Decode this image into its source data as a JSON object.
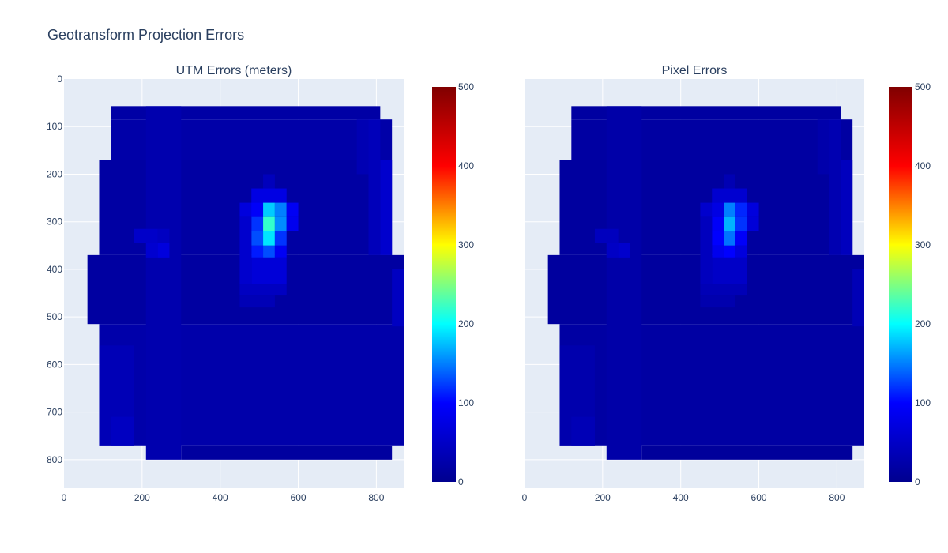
{
  "figure": {
    "title": "Geotransform Projection Errors"
  },
  "colors": {
    "plot_bg": "#e5ecf6",
    "grid": "#ffffff",
    "text": "#2a3f5f",
    "colorscale": [
      "#00008f",
      "#0000ff",
      "#00ffff",
      "#ffff00",
      "#ff0000",
      "#800000"
    ]
  },
  "chart_data": [
    {
      "type": "heatmap",
      "title": "UTM Errors (meters)",
      "xlabel": "",
      "ylabel": "",
      "xlim": [
        0,
        870
      ],
      "ylim": [
        860,
        0
      ],
      "x_ticks": [
        "0",
        "200",
        "400",
        "600",
        "800"
      ],
      "y_ticks": [
        "0",
        "100",
        "200",
        "300",
        "400",
        "500",
        "600",
        "700",
        "800"
      ],
      "colorbar": {
        "min": 0,
        "max": 500,
        "ticks": [
          "0",
          "100",
          "200",
          "300",
          "400",
          "500"
        ]
      },
      "cell_width": 30,
      "cell_height": 28,
      "cells": [
        {
          "x0": 120,
          "x1": 810,
          "y0": 57,
          "y1": 85,
          "value": 20
        },
        {
          "x0": 120,
          "x1": 840,
          "y0": 85,
          "y1": 170,
          "value": 22
        },
        {
          "x0": 90,
          "x1": 840,
          "y0": 170,
          "y1": 370,
          "value": 18
        },
        {
          "x0": 60,
          "x1": 870,
          "y0": 370,
          "y1": 515,
          "value": 16
        },
        {
          "x0": 90,
          "x1": 870,
          "y0": 515,
          "y1": 770,
          "value": 24
        },
        {
          "x0": 300,
          "x1": 840,
          "y0": 770,
          "y1": 800,
          "value": 14
        },
        {
          "x0": 810,
          "x1": 840,
          "y0": 170,
          "y1": 370,
          "value": 55
        },
        {
          "x0": 840,
          "x1": 870,
          "y0": 400,
          "y1": 520,
          "value": 45
        },
        {
          "x0": 210,
          "x1": 300,
          "y0": 57,
          "y1": 800,
          "value": 28
        },
        {
          "x0": 780,
          "x1": 810,
          "y0": 85,
          "y1": 370,
          "value": 38
        },
        {
          "x0": 750,
          "x1": 780,
          "y0": 85,
          "y1": 200,
          "value": 32
        },
        {
          "x0": 180,
          "x1": 240,
          "y0": 315,
          "y1": 345,
          "value": 52
        },
        {
          "x0": 240,
          "x1": 270,
          "y0": 315,
          "y1": 345,
          "value": 45
        },
        {
          "x0": 240,
          "x1": 270,
          "y0": 345,
          "y1": 375,
          "value": 70
        },
        {
          "x0": 210,
          "x1": 240,
          "y0": 345,
          "y1": 375,
          "value": 58
        },
        {
          "x0": 510,
          "x1": 540,
          "y0": 200,
          "y1": 230,
          "value": 40
        },
        {
          "x0": 480,
          "x1": 570,
          "y0": 230,
          "y1": 260,
          "value": 75
        },
        {
          "x0": 450,
          "x1": 510,
          "y0": 260,
          "y1": 290,
          "value": 70
        },
        {
          "x0": 480,
          "x1": 510,
          "y0": 260,
          "y1": 290,
          "value": 95
        },
        {
          "x0": 510,
          "x1": 540,
          "y0": 260,
          "y1": 290,
          "value": 180
        },
        {
          "x0": 540,
          "x1": 570,
          "y0": 260,
          "y1": 290,
          "value": 150
        },
        {
          "x0": 570,
          "x1": 600,
          "y0": 260,
          "y1": 290,
          "value": 90
        },
        {
          "x0": 480,
          "x1": 510,
          "y0": 290,
          "y1": 320,
          "value": 120
        },
        {
          "x0": 510,
          "x1": 540,
          "y0": 290,
          "y1": 320,
          "value": 220
        },
        {
          "x0": 540,
          "x1": 570,
          "y0": 290,
          "y1": 320,
          "value": 155
        },
        {
          "x0": 570,
          "x1": 600,
          "y0": 290,
          "y1": 320,
          "value": 85
        },
        {
          "x0": 480,
          "x1": 510,
          "y0": 320,
          "y1": 350,
          "value": 130
        },
        {
          "x0": 510,
          "x1": 540,
          "y0": 320,
          "y1": 350,
          "value": 190
        },
        {
          "x0": 540,
          "x1": 570,
          "y0": 320,
          "y1": 350,
          "value": 120
        },
        {
          "x0": 480,
          "x1": 510,
          "y0": 350,
          "y1": 375,
          "value": 110
        },
        {
          "x0": 510,
          "x1": 540,
          "y0": 350,
          "y1": 375,
          "value": 130
        },
        {
          "x0": 540,
          "x1": 570,
          "y0": 350,
          "y1": 375,
          "value": 90
        },
        {
          "x0": 480,
          "x1": 570,
          "y0": 375,
          "y1": 430,
          "value": 65
        },
        {
          "x0": 450,
          "x1": 480,
          "y0": 290,
          "y1": 430,
          "value": 55
        },
        {
          "x0": 450,
          "x1": 570,
          "y0": 430,
          "y1": 455,
          "value": 45
        },
        {
          "x0": 450,
          "x1": 540,
          "y0": 455,
          "y1": 480,
          "value": 35
        },
        {
          "x0": 90,
          "x1": 180,
          "y0": 560,
          "y1": 770,
          "value": 35
        },
        {
          "x0": 120,
          "x1": 180,
          "y0": 710,
          "y1": 770,
          "value": 45
        }
      ]
    },
    {
      "type": "heatmap",
      "title": "Pixel Errors",
      "xlabel": "",
      "ylabel": "",
      "xlim": [
        0,
        870
      ],
      "ylim": [
        860,
        0
      ],
      "x_ticks": [
        "0",
        "200",
        "400",
        "600",
        "800"
      ],
      "y_ticks": [],
      "colorbar": {
        "min": 0,
        "max": 500,
        "ticks": [
          "0",
          "100",
          "200",
          "300",
          "400",
          "500"
        ]
      },
      "cell_width": 30,
      "cell_height": 28,
      "cells": [
        {
          "x0": 120,
          "x1": 810,
          "y0": 57,
          "y1": 85,
          "value": 16
        },
        {
          "x0": 120,
          "x1": 840,
          "y0": 85,
          "y1": 170,
          "value": 17
        },
        {
          "x0": 90,
          "x1": 840,
          "y0": 170,
          "y1": 370,
          "value": 14
        },
        {
          "x0": 60,
          "x1": 870,
          "y0": 370,
          "y1": 515,
          "value": 13
        },
        {
          "x0": 90,
          "x1": 870,
          "y0": 515,
          "y1": 770,
          "value": 18
        },
        {
          "x0": 300,
          "x1": 840,
          "y0": 770,
          "y1": 800,
          "value": 11
        },
        {
          "x0": 810,
          "x1": 840,
          "y0": 170,
          "y1": 370,
          "value": 42
        },
        {
          "x0": 840,
          "x1": 870,
          "y0": 400,
          "y1": 520,
          "value": 35
        },
        {
          "x0": 210,
          "x1": 300,
          "y0": 57,
          "y1": 800,
          "value": 22
        },
        {
          "x0": 780,
          "x1": 810,
          "y0": 85,
          "y1": 370,
          "value": 30
        },
        {
          "x0": 750,
          "x1": 780,
          "y0": 85,
          "y1": 200,
          "value": 25
        },
        {
          "x0": 180,
          "x1": 240,
          "y0": 315,
          "y1": 345,
          "value": 42
        },
        {
          "x0": 210,
          "x1": 240,
          "y0": 345,
          "y1": 375,
          "value": 48
        },
        {
          "x0": 240,
          "x1": 270,
          "y0": 345,
          "y1": 375,
          "value": 55
        },
        {
          "x0": 510,
          "x1": 540,
          "y0": 200,
          "y1": 230,
          "value": 32
        },
        {
          "x0": 480,
          "x1": 570,
          "y0": 230,
          "y1": 260,
          "value": 58
        },
        {
          "x0": 450,
          "x1": 510,
          "y0": 260,
          "y1": 290,
          "value": 55
        },
        {
          "x0": 480,
          "x1": 510,
          "y0": 260,
          "y1": 290,
          "value": 75
        },
        {
          "x0": 510,
          "x1": 540,
          "y0": 260,
          "y1": 290,
          "value": 150
        },
        {
          "x0": 540,
          "x1": 570,
          "y0": 260,
          "y1": 290,
          "value": 115
        },
        {
          "x0": 570,
          "x1": 600,
          "y0": 260,
          "y1": 290,
          "value": 70
        },
        {
          "x0": 480,
          "x1": 510,
          "y0": 290,
          "y1": 320,
          "value": 95
        },
        {
          "x0": 510,
          "x1": 540,
          "y0": 290,
          "y1": 320,
          "value": 170
        },
        {
          "x0": 540,
          "x1": 570,
          "y0": 290,
          "y1": 320,
          "value": 120
        },
        {
          "x0": 570,
          "x1": 600,
          "y0": 290,
          "y1": 320,
          "value": 65
        },
        {
          "x0": 480,
          "x1": 510,
          "y0": 320,
          "y1": 350,
          "value": 100
        },
        {
          "x0": 510,
          "x1": 540,
          "y0": 320,
          "y1": 350,
          "value": 145
        },
        {
          "x0": 540,
          "x1": 570,
          "y0": 320,
          "y1": 350,
          "value": 95
        },
        {
          "x0": 480,
          "x1": 510,
          "y0": 350,
          "y1": 375,
          "value": 85
        },
        {
          "x0": 510,
          "x1": 540,
          "y0": 350,
          "y1": 375,
          "value": 100
        },
        {
          "x0": 540,
          "x1": 570,
          "y0": 350,
          "y1": 375,
          "value": 70
        },
        {
          "x0": 480,
          "x1": 570,
          "y0": 375,
          "y1": 430,
          "value": 50
        },
        {
          "x0": 450,
          "x1": 480,
          "y0": 290,
          "y1": 430,
          "value": 42
        },
        {
          "x0": 450,
          "x1": 570,
          "y0": 430,
          "y1": 455,
          "value": 35
        },
        {
          "x0": 450,
          "x1": 540,
          "y0": 455,
          "y1": 480,
          "value": 28
        },
        {
          "x0": 90,
          "x1": 180,
          "y0": 560,
          "y1": 770,
          "value": 27
        },
        {
          "x0": 120,
          "x1": 180,
          "y0": 710,
          "y1": 770,
          "value": 35
        }
      ]
    }
  ]
}
